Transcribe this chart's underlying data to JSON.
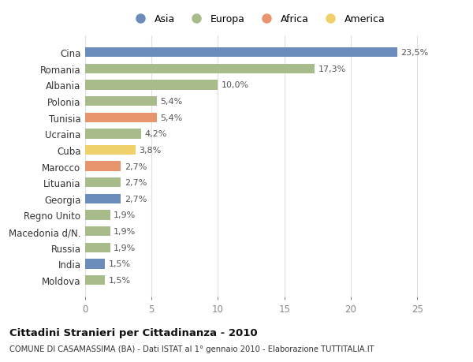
{
  "countries": [
    "Cina",
    "Romania",
    "Albania",
    "Polonia",
    "Tunisia",
    "Ucraina",
    "Cuba",
    "Marocco",
    "Lituania",
    "Georgia",
    "Regno Unito",
    "Macedonia d/N.",
    "Russia",
    "India",
    "Moldova"
  ],
  "values": [
    23.5,
    17.3,
    10.0,
    5.4,
    5.4,
    4.2,
    3.8,
    2.7,
    2.7,
    2.7,
    1.9,
    1.9,
    1.9,
    1.5,
    1.5
  ],
  "labels": [
    "23,5%",
    "17,3%",
    "10,0%",
    "5,4%",
    "5,4%",
    "4,2%",
    "3,8%",
    "2,7%",
    "2,7%",
    "2,7%",
    "1,9%",
    "1,9%",
    "1,9%",
    "1,5%",
    "1,5%"
  ],
  "continents": [
    "Asia",
    "Europa",
    "Europa",
    "Europa",
    "Africa",
    "Europa",
    "America",
    "Africa",
    "Europa",
    "Asia",
    "Europa",
    "Europa",
    "Europa",
    "Asia",
    "Europa"
  ],
  "colors": {
    "Asia": "#6b8cba",
    "Europa": "#a8bb8a",
    "Africa": "#e8956d",
    "America": "#f0d06a"
  },
  "legend_order": [
    "Asia",
    "Europa",
    "Africa",
    "America"
  ],
  "title": "Cittadini Stranieri per Cittadinanza - 2010",
  "subtitle": "COMUNE DI CASAMASSIMA (BA) - Dati ISTAT al 1° gennaio 2010 - Elaborazione TUTTITALIA.IT",
  "xlim": [
    0,
    26
  ],
  "xticks": [
    0,
    5,
    10,
    15,
    20,
    25
  ],
  "bg_color": "#ffffff",
  "grid_color": "#e0e0e0",
  "bar_height": 0.6
}
